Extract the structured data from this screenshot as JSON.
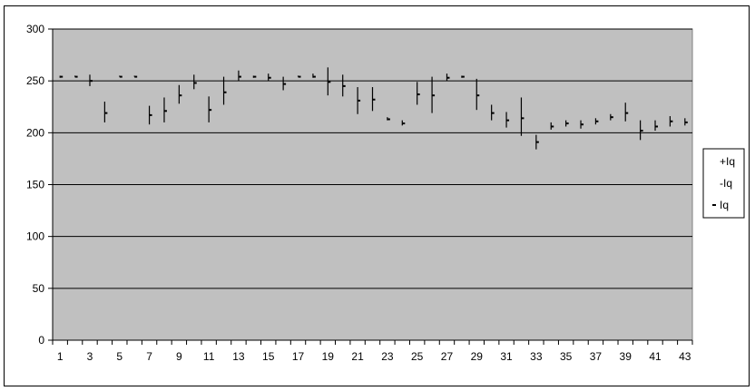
{
  "chart_data": {
    "type": "stock-hlc",
    "title": "",
    "xlabel": "",
    "ylabel": "",
    "ylim": [
      0,
      300
    ],
    "yticks": [
      0,
      50,
      100,
      150,
      200,
      250,
      300
    ],
    "x": [
      1,
      2,
      3,
      4,
      5,
      6,
      7,
      8,
      9,
      10,
      11,
      12,
      13,
      14,
      15,
      16,
      17,
      18,
      19,
      20,
      21,
      22,
      23,
      24,
      25,
      26,
      27,
      28,
      29,
      30,
      31,
      32,
      33,
      34,
      35,
      36,
      37,
      38,
      39,
      40,
      41,
      42,
      43
    ],
    "xtick_labels": [
      "1",
      "3",
      "5",
      "7",
      "9",
      "11",
      "13",
      "15",
      "17",
      "19",
      "21",
      "23",
      "25",
      "27",
      "29",
      "31",
      "33",
      "35",
      "37",
      "39",
      "41",
      "43"
    ],
    "grid": "horizontal",
    "plot_background": "#c0c0c0",
    "legend_position": "right",
    "series": [
      {
        "name": "+Iq",
        "values": [
          255,
          255,
          256,
          230,
          255,
          255,
          226,
          234,
          246,
          256,
          235,
          254,
          260,
          255,
          257,
          254,
          255,
          257,
          263,
          256,
          244,
          244,
          215,
          212,
          249,
          254,
          257,
          255,
          252,
          227,
          220,
          234,
          198,
          210,
          212,
          212,
          214,
          218,
          229,
          212,
          212,
          216,
          214
        ]
      },
      {
        "name": "-Iq",
        "values": [
          253,
          254,
          245,
          210,
          254,
          254,
          208,
          210,
          228,
          242,
          210,
          227,
          250,
          253,
          250,
          241,
          254,
          253,
          236,
          235,
          218,
          221,
          212,
          207,
          227,
          219,
          250,
          253,
          222,
          212,
          205,
          197,
          184,
          203,
          206,
          204,
          208,
          212,
          211,
          193,
          202,
          206,
          207
        ]
      },
      {
        "name": "Iq",
        "values": [
          254,
          254,
          250,
          219,
          254,
          254,
          217,
          221,
          236,
          248,
          222,
          239,
          254,
          254,
          253,
          247,
          254,
          254,
          249,
          245,
          231,
          232,
          213,
          209,
          237,
          236,
          253,
          254,
          236,
          219,
          212,
          214,
          191,
          206,
          209,
          208,
          211,
          215,
          219,
          202,
          206,
          211,
          210
        ]
      }
    ]
  }
}
